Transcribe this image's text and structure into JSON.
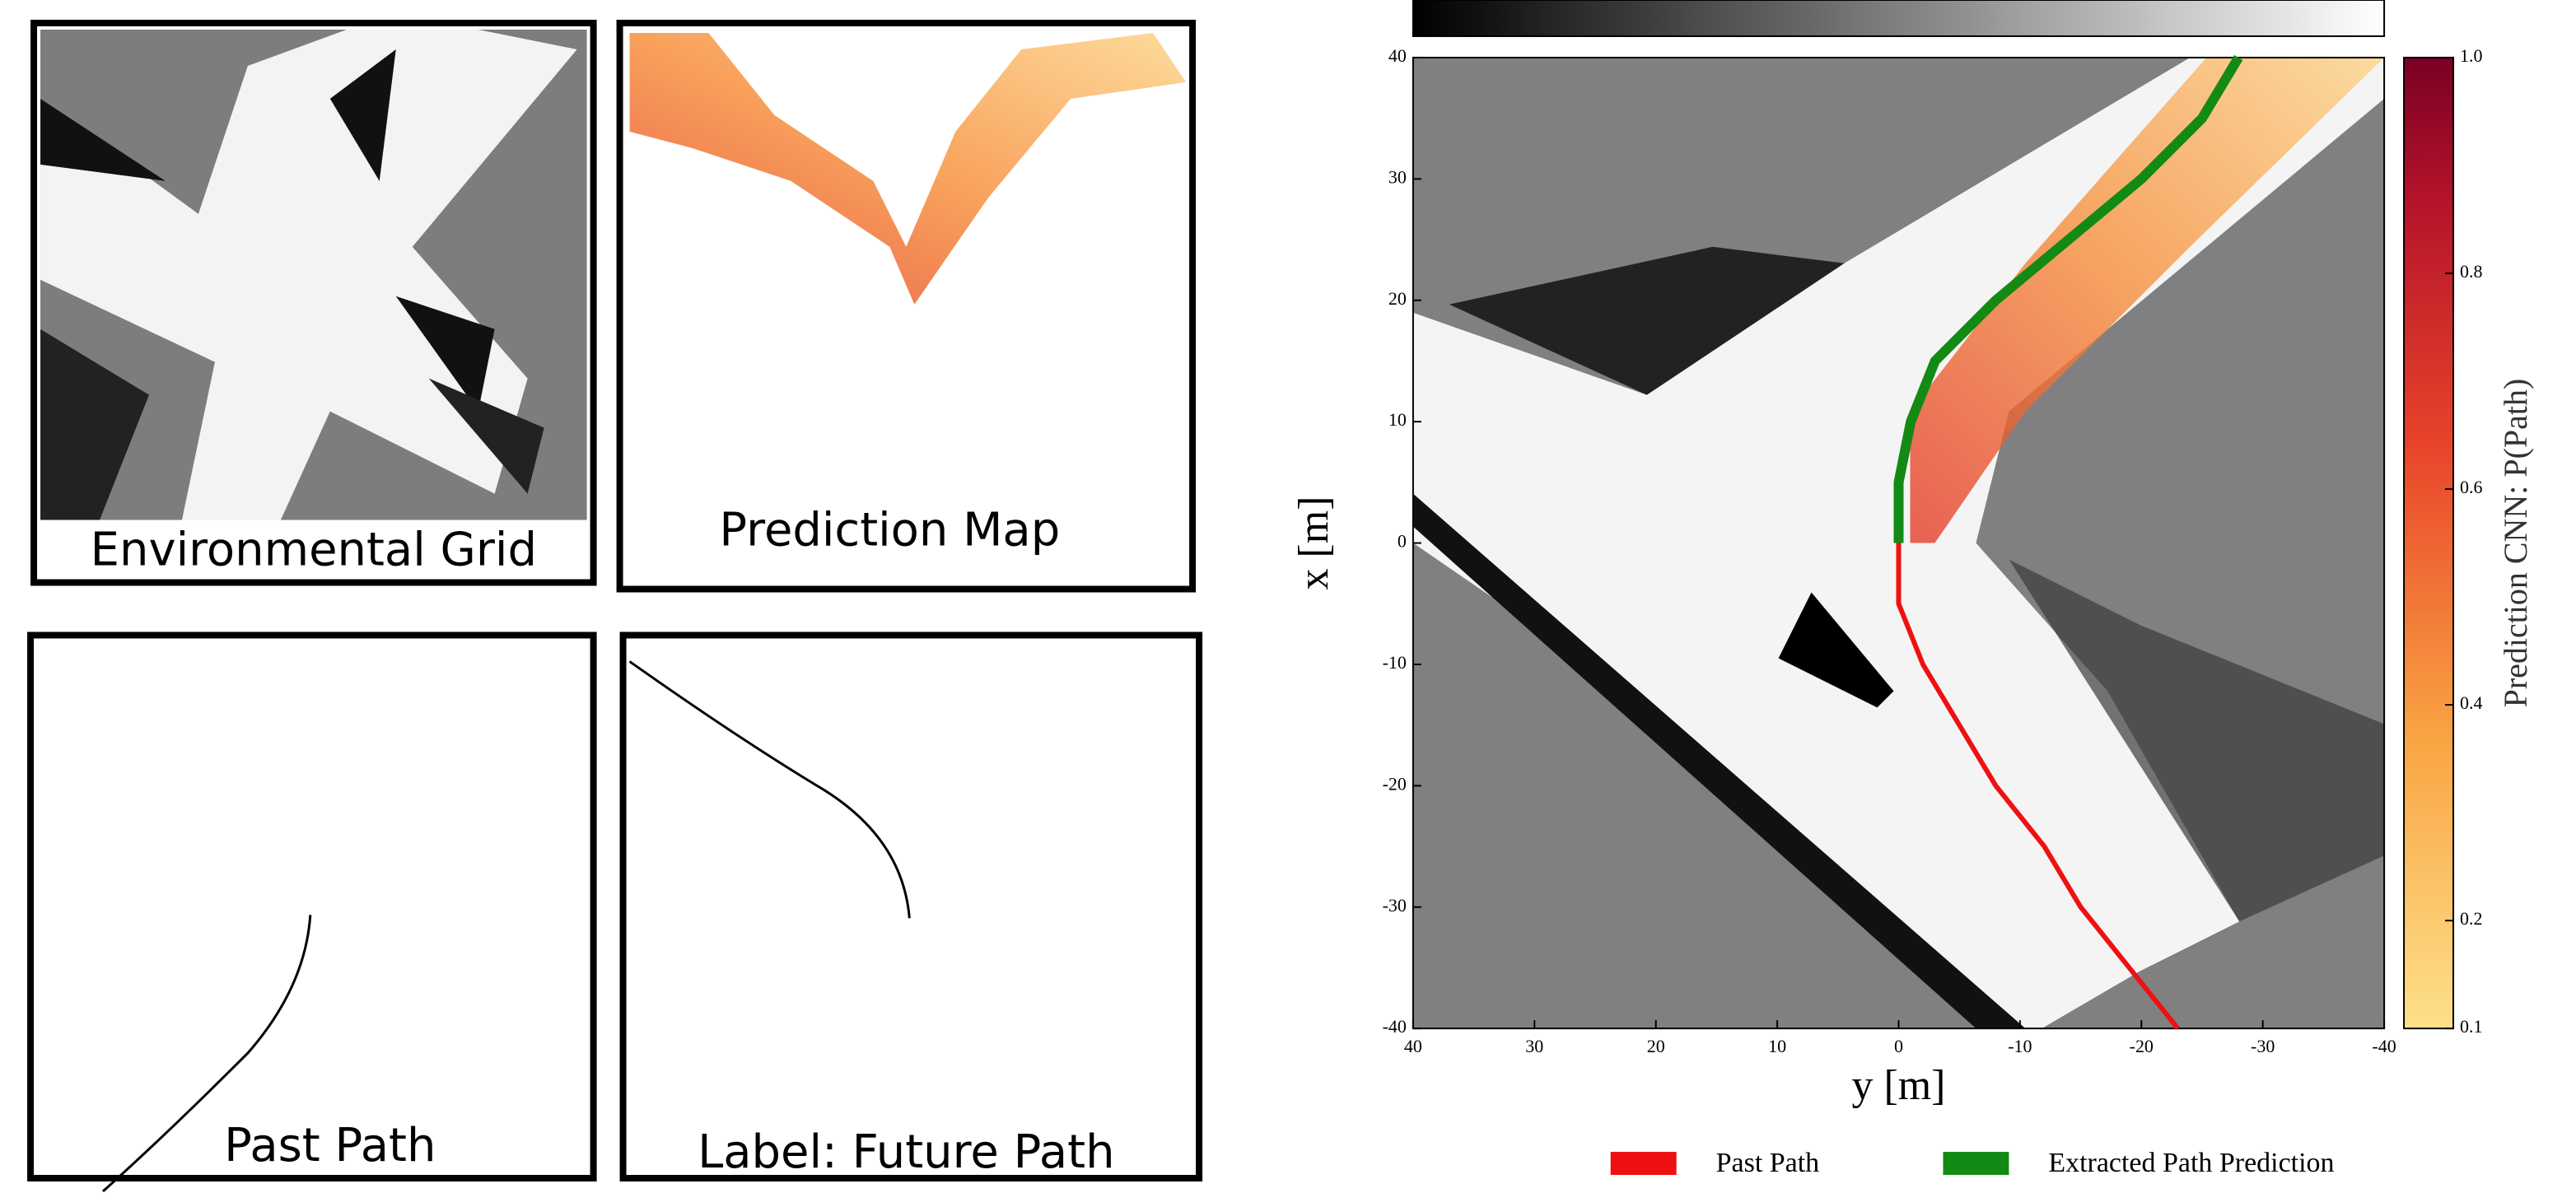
{
  "panels": [
    {
      "label": "Environmental Grid"
    },
    {
      "label": "Prediction Map"
    },
    {
      "label": "Past Path"
    },
    {
      "label": "Label: Future Path"
    }
  ],
  "chart_data": {
    "type": "line",
    "xlabel": "y [m]",
    "ylabel": "x [m]",
    "xlim": [
      40,
      -40
    ],
    "xticks": [
      40,
      30,
      20,
      10,
      0,
      -10,
      -20,
      -30,
      -40
    ],
    "ylim": [
      -40,
      40
    ],
    "yticks": [
      -40,
      -30,
      -20,
      -10,
      0,
      10,
      20,
      30,
      40
    ],
    "colorbar": {
      "label": "Prediction CNN: P(Path)",
      "lim": [
        0.1,
        1.0
      ],
      "ticks": [
        0.1,
        0.2,
        0.4,
        0.6,
        0.8,
        {
          "value": 1,
          "label": "1.0"
        }
      ]
    },
    "series": [
      {
        "name": "Past Path",
        "color": "#ee1111",
        "x": [
          0,
          0,
          -2,
          -5,
          -8,
          -12,
          -15,
          -19,
          -23
        ],
        "values": [
          0,
          -5,
          -10,
          -15,
          -20,
          -25,
          -30,
          -35,
          -40
        ]
      },
      {
        "name": "Extracted Path Prediction",
        "color": "#138a13",
        "x": [
          0,
          0,
          -1,
          -3,
          -8,
          -14,
          -20,
          -25,
          -28
        ],
        "values": [
          0,
          5,
          10,
          15,
          20,
          25,
          30,
          35,
          40
        ]
      }
    ]
  }
}
